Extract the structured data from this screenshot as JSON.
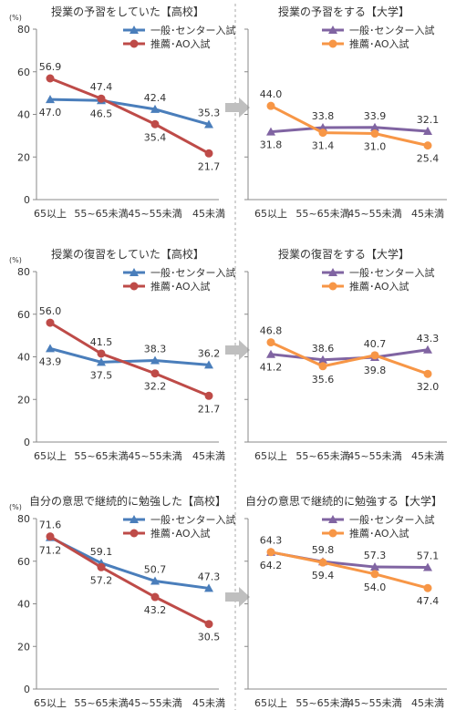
{
  "colors": {
    "blue": "#4a7ebb",
    "red": "#be4b48",
    "purple": "#8064a2",
    "orange": "#f79646",
    "axis": "#888888",
    "divider": "#aaaaaa",
    "arrow": "#bfbfbf",
    "text": "#333333"
  },
  "chart_data": [
    {
      "type": "line",
      "title": "授業の予習をしていた【高校】",
      "ylabel": "(%)",
      "ylim": [
        0,
        80
      ],
      "yticks": [
        0,
        20,
        40,
        60,
        80
      ],
      "categories": [
        "65以上",
        "55~65未満",
        "45~55未満",
        "45未満"
      ],
      "legend_position": "top-right",
      "series": [
        {
          "name": "一般･センター入試",
          "marker": "triangle",
          "color": "#4a7ebb",
          "values": [
            47.0,
            46.5,
            42.4,
            35.3
          ],
          "labels": [
            "47.0",
            "46.5",
            "42.4",
            "35.3"
          ]
        },
        {
          "name": "推薦･AO入試",
          "marker": "circle",
          "color": "#be4b48",
          "values": [
            56.9,
            47.4,
            35.4,
            21.7
          ],
          "labels": [
            "56.9",
            "47.4",
            "35.4",
            "21.7"
          ]
        }
      ]
    },
    {
      "type": "line",
      "title": "授業の予習をする【大学】",
      "ylim": [
        0,
        80
      ],
      "categories": [
        "65以上",
        "55~65未満",
        "45~55未満",
        "45未満"
      ],
      "legend_position": "top-right",
      "series": [
        {
          "name": "一般･センター入試",
          "marker": "triangle",
          "color": "#8064a2",
          "values": [
            31.8,
            33.8,
            33.9,
            32.1
          ],
          "labels": [
            "31.8",
            "33.8",
            "33.9",
            "32.1"
          ]
        },
        {
          "name": "推薦･AO入試",
          "marker": "circle",
          "color": "#f79646",
          "values": [
            44.0,
            31.4,
            31.0,
            25.4
          ],
          "labels": [
            "44.0",
            "31.4",
            "31.0",
            "25.4"
          ]
        }
      ]
    },
    {
      "type": "line",
      "title": "授業の復習をしていた【高校】",
      "ylabel": "(%)",
      "ylim": [
        0,
        80
      ],
      "yticks": [
        0,
        20,
        40,
        60,
        80
      ],
      "categories": [
        "65以上",
        "55~65未満",
        "45~55未満",
        "45未満"
      ],
      "legend_position": "top-right",
      "series": [
        {
          "name": "一般･センター入試",
          "marker": "triangle",
          "color": "#4a7ebb",
          "values": [
            43.9,
            37.5,
            38.3,
            36.2
          ],
          "labels": [
            "43.9",
            "37.5",
            "38.3",
            "36.2"
          ]
        },
        {
          "name": "推薦･AO入試",
          "marker": "circle",
          "color": "#be4b48",
          "values": [
            56.0,
            41.5,
            32.2,
            21.7
          ],
          "labels": [
            "56.0",
            "41.5",
            "32.2",
            "21.7"
          ]
        }
      ]
    },
    {
      "type": "line",
      "title": "授業の復習をする【大学】",
      "ylim": [
        0,
        80
      ],
      "categories": [
        "65以上",
        "55~65未満",
        "45~55未満",
        "45未満"
      ],
      "legend_position": "top-right",
      "series": [
        {
          "name": "一般･センター入試",
          "marker": "triangle",
          "color": "#8064a2",
          "values": [
            41.2,
            38.6,
            39.8,
            43.3
          ],
          "labels": [
            "41.2",
            "38.6",
            "39.8",
            "43.3"
          ]
        },
        {
          "name": "推薦･AO入試",
          "marker": "circle",
          "color": "#f79646",
          "values": [
            46.8,
            35.6,
            40.7,
            32.0
          ],
          "labels": [
            "46.8",
            "35.6",
            "40.7",
            "32.0"
          ]
        }
      ]
    },
    {
      "type": "line",
      "title": "自分の意思で継続的に勉強した【高校】",
      "ylabel": "(%)",
      "ylim": [
        0,
        80
      ],
      "yticks": [
        0,
        20,
        40,
        60,
        80
      ],
      "categories": [
        "65以上",
        "55~65未満",
        "45~55未満",
        "45未満"
      ],
      "legend_position": "top-right",
      "series": [
        {
          "name": "一般･センター入試",
          "marker": "triangle",
          "color": "#4a7ebb",
          "values": [
            71.2,
            59.1,
            50.7,
            47.3
          ],
          "labels": [
            "71.2",
            "59.1",
            "50.7",
            "47.3"
          ]
        },
        {
          "name": "推薦･AO入試",
          "marker": "circle",
          "color": "#be4b48",
          "values": [
            71.6,
            57.2,
            43.2,
            30.5
          ],
          "labels": [
            "71.6",
            "57.2",
            "43.2",
            "30.5"
          ]
        }
      ]
    },
    {
      "type": "line",
      "title": "自分の意思で継続的に勉強する【大学】",
      "ylim": [
        0,
        80
      ],
      "categories": [
        "65以上",
        "55~65未満",
        "45~55未満",
        "45未満"
      ],
      "legend_position": "top-right",
      "series": [
        {
          "name": "一般･センター入試",
          "marker": "triangle",
          "color": "#8064a2",
          "values": [
            64.2,
            59.8,
            57.3,
            57.1
          ],
          "labels": [
            "64.2",
            "59.8",
            "57.3",
            "57.1"
          ]
        },
        {
          "name": "推薦･AO入試",
          "marker": "circle",
          "color": "#f79646",
          "values": [
            64.3,
            59.4,
            54.0,
            47.4
          ],
          "labels": [
            "64.3",
            "59.4",
            "54.0",
            "47.4"
          ]
        }
      ]
    }
  ]
}
